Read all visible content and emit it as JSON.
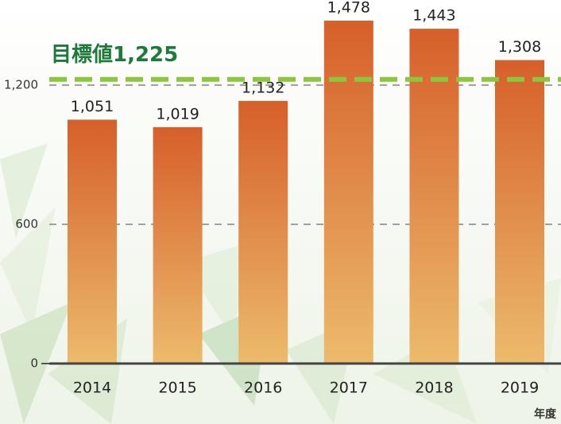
{
  "chart_data": {
    "type": "bar",
    "categories": [
      "2014",
      "2015",
      "2016",
      "2017",
      "2018",
      "2019"
    ],
    "values": [
      1051,
      1019,
      1132,
      1478,
      1443,
      1308
    ],
    "value_labels": [
      "1,051",
      "1,019",
      "1,132",
      "1,478",
      "1,443",
      "1,308"
    ],
    "colors": [
      "#d65f2a",
      "#ecbb6c"
    ],
    "ylim": [
      0,
      1500
    ],
    "yticks": [
      0,
      600,
      {
        "value": 1200,
        "label": "1,200"
      }
    ],
    "grid": true,
    "xlabel": "年度",
    "target": {
      "value": 1225,
      "label": "目標値1,225",
      "color": "#8cc63e"
    }
  }
}
